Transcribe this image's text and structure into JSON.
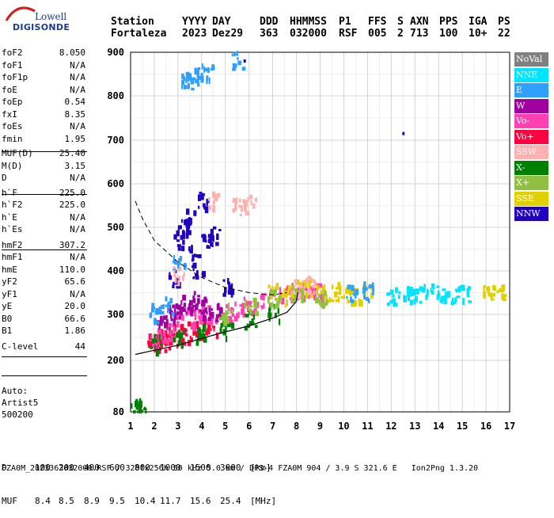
{
  "logo": {
    "top": "Lowell",
    "bottom": "DIGISONDE"
  },
  "header": {
    "labels": [
      "Station",
      "YYYY",
      "DAY",
      "DDD",
      "HHMMSS",
      "P1",
      "FFS",
      "S",
      "AXN",
      "PPS",
      "IGA",
      "PS"
    ],
    "values": [
      "Fortaleza",
      "2023",
      "Dez29",
      "363",
      "032000",
      "RSF",
      "005",
      "2",
      "713",
      "100",
      "10+",
      "22"
    ]
  },
  "params": {
    "group1": [
      {
        "name": "foF2",
        "value": "8.050"
      },
      {
        "name": "foF1",
        "value": "N/A"
      },
      {
        "name": "foF1p",
        "value": "N/A"
      },
      {
        "name": "foE",
        "value": "N/A"
      },
      {
        "name": "foEp",
        "value": "0.54"
      },
      {
        "name": "fxI",
        "value": "8.35"
      },
      {
        "name": "foEs",
        "value": "N/A"
      },
      {
        "name": "fmin",
        "value": "1.95"
      }
    ],
    "group2": [
      {
        "name": "MUF(D)",
        "value": "25.40"
      },
      {
        "name": "M(D)",
        "value": "3.15"
      },
      {
        "name": "D",
        "value": "N/A"
      }
    ],
    "group3": [
      {
        "name": "h`F",
        "value": "225.0"
      },
      {
        "name": "h`F2",
        "value": "225.0"
      },
      {
        "name": "h`E",
        "value": "N/A"
      },
      {
        "name": "h`Es",
        "value": "N/A"
      }
    ],
    "group4": [
      {
        "name": "hmF2",
        "value": "307.2"
      },
      {
        "name": "hmF1",
        "value": "N/A"
      },
      {
        "name": "hmE",
        "value": "110.0"
      },
      {
        "name": "yF2",
        "value": "65.6"
      },
      {
        "name": "yF1",
        "value": "N/A"
      },
      {
        "name": "yE",
        "value": "20.0"
      },
      {
        "name": "B0",
        "value": "66.6"
      },
      {
        "name": "B1",
        "value": "1.86"
      }
    ],
    "group5": [
      {
        "name": "C-level",
        "value": "44"
      }
    ]
  },
  "auto": {
    "line1": "Auto:",
    "line2": "Artist5",
    "line3": "500200"
  },
  "legend": [
    {
      "label": "NoVal",
      "color": "#808080"
    },
    {
      "label": "NNE",
      "color": "#00e5ff"
    },
    {
      "label": "E",
      "color": "#30a0ff"
    },
    {
      "label": "W",
      "color": "#a000a0"
    },
    {
      "label": "Vo-",
      "color": "#ff40b0"
    },
    {
      "label": "Vo+",
      "color": "#ff0040"
    },
    {
      "label": "SSW",
      "color": "#ffb0b0"
    },
    {
      "label": "X-",
      "color": "#008000"
    },
    {
      "label": "X+",
      "color": "#90c040"
    },
    {
      "label": "SSE",
      "color": "#e0d000"
    },
    {
      "label": "NNW",
      "color": "#2000c0"
    }
  ],
  "bottom_table": {
    "d_label": "D",
    "d_values": [
      "100",
      "200",
      "400",
      "600",
      "800",
      "1000",
      "1500",
      "3000"
    ],
    "d_unit": "[km]",
    "muf_label": "MUF",
    "muf_values": [
      "8.4",
      "8.5",
      "8.9",
      "9.5",
      "10.4",
      "11.7",
      "15.6",
      "25.4"
    ],
    "muf_unit": "[MHz]"
  },
  "footer": "FZA0M_2023363032000.RSF / 320fx256h 50 kHz 5.0 km / DPS-4 FZA0M 904 / 3.9 S 321.6 E   Ion2Png 1.3.20",
  "chart_data": {
    "type": "scatter",
    "title": "",
    "xlabel": "",
    "ylabel": "",
    "xlim": [
      1,
      17
    ],
    "ylim": [
      80,
      900
    ],
    "x_ticks": [
      1,
      2,
      3,
      4,
      5,
      6,
      7,
      8,
      9,
      10,
      11,
      12,
      13,
      14,
      15,
      16,
      17
    ],
    "y_ticks": [
      80,
      200,
      300,
      400,
      500,
      600,
      700,
      800,
      900
    ],
    "grid": true,
    "legend_position": "right",
    "profile_curve": {
      "x": [
        1.2,
        2.0,
        3.0,
        4.0,
        5.0,
        6.0,
        7.0,
        7.6,
        8.0,
        8.05
      ],
      "y": [
        213,
        222,
        233,
        248,
        262,
        275,
        292,
        305,
        330,
        350
      ]
    },
    "upper_curve": {
      "x": [
        1.2,
        1.5,
        2.0,
        3.0,
        4.0,
        5.0,
        6.0,
        7.0,
        7.6
      ],
      "y": [
        560,
        520,
        470,
        420,
        385,
        362,
        350,
        345,
        350
      ]
    },
    "clusters": [
      {
        "series": "Vo+",
        "x": [
          1.9,
          2.1,
          2.3,
          2.5,
          2.8,
          3.0,
          3.3,
          3.6,
          4.0,
          4.4
        ],
        "y": [
          240,
          235,
          245,
          240,
          250,
          255,
          250,
          260,
          265,
          270
        ]
      },
      {
        "series": "Vo-",
        "x": [
          2.0,
          2.5,
          3.0,
          3.5,
          4.0,
          4.5,
          5.0,
          5.5,
          6.0,
          6.5,
          7.0,
          7.5,
          8.0,
          8.5,
          9.0
        ],
        "y": [
          250,
          260,
          280,
          290,
          300,
          290,
          300,
          310,
          320,
          330,
          340,
          345,
          350,
          355,
          350
        ]
      },
      {
        "series": "W",
        "x": [
          2.3,
          2.7,
          3.0,
          3.3,
          3.6,
          3.9,
          4.2,
          4.5
        ],
        "y": [
          280,
          300,
          310,
          320,
          330,
          320,
          310,
          300
        ]
      },
      {
        "series": "NNW",
        "x": [
          2.8,
          3.0,
          3.2,
          3.4,
          3.6,
          3.8,
          4.0,
          4.2,
          4.5,
          5.0
        ],
        "y": [
          380,
          470,
          500,
          520,
          440,
          400,
          560,
          470,
          480,
          360
        ]
      },
      {
        "series": "X-",
        "x": [
          2.0,
          3.0,
          4.0,
          5.0,
          6.0,
          7.0,
          1.2,
          1.4
        ],
        "y": [
          235,
          245,
          255,
          265,
          285,
          300,
          90,
          88
        ]
      },
      {
        "series": "SSE",
        "x": [
          7.0,
          7.5,
          8.0,
          8.5,
          9.0,
          9.5,
          10.0,
          10.5,
          11.0,
          16.0,
          16.5
        ],
        "y": [
          350,
          340,
          355,
          360,
          345,
          350,
          345,
          340,
          350,
          345,
          348
        ]
      },
      {
        "series": "NNE",
        "x": [
          12.0,
          12.5,
          13.0,
          13.5,
          14.0,
          14.5,
          15.0
        ],
        "y": [
          340,
          345,
          342,
          348,
          345,
          340,
          343
        ]
      },
      {
        "series": "E",
        "x": [
          2.0,
          2.5,
          3.0,
          3.3,
          3.5,
          3.8,
          4.2,
          5.5,
          10.3,
          11.0
        ],
        "y": [
          300,
          320,
          420,
          825,
          835,
          845,
          850,
          880,
          345,
          350
        ]
      },
      {
        "series": "SSW",
        "x": [
          3.0,
          4.5,
          5.5,
          6.0,
          8.0,
          8.5
        ],
        "y": [
          390,
          560,
          545,
          550,
          360,
          365
        ]
      },
      {
        "series": "X+",
        "x": [
          5.0,
          6.0,
          7.0,
          8.0,
          9.0
        ],
        "y": [
          300,
          320,
          330,
          350,
          340
        ]
      }
    ],
    "isolated_points": [
      {
        "series": "NNW",
        "x": 12.5,
        "y": 715
      },
      {
        "series": "NNW",
        "x": 5.8,
        "y": 880
      }
    ]
  }
}
